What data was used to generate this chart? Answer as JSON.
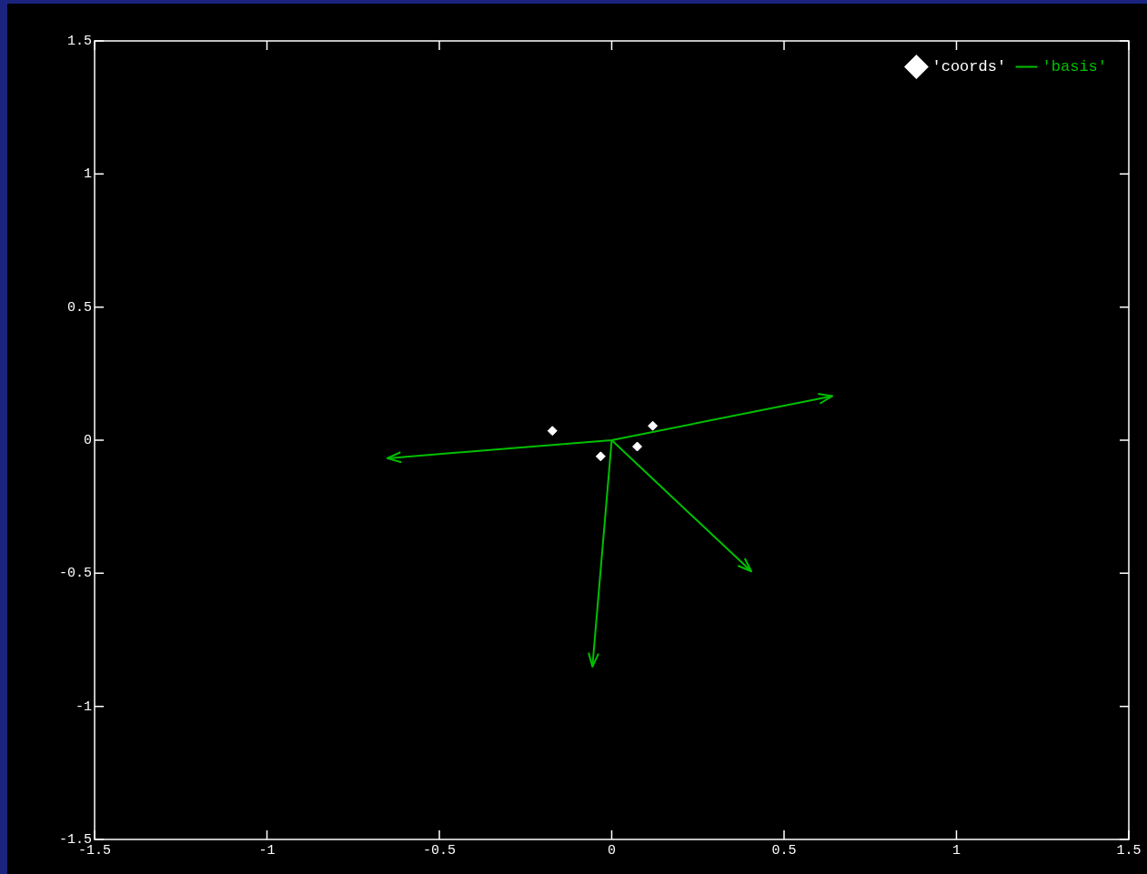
{
  "chart_data": {
    "type": "scatter",
    "xlim": [
      -1.5,
      1.5
    ],
    "ylim": [
      -1.5,
      1.5
    ],
    "xticks": [
      -1.5,
      -1,
      -0.5,
      0,
      0.5,
      1,
      1.5
    ],
    "yticks": [
      -1.5,
      -1,
      -0.5,
      0,
      0.5,
      1,
      1.5
    ],
    "grid": false,
    "legend": "top right",
    "series": [
      {
        "name": "'coords'",
        "type": "scatter",
        "marker": "diamond",
        "color": "#ffffff",
        "x": [
          -0.172,
          0.119,
          -0.032,
          0.074
        ],
        "values": [
          0.035,
          0.054,
          -0.061,
          -0.024
        ]
      },
      {
        "name": "'basis'",
        "type": "line",
        "marker": "none",
        "color": "#00c000",
        "x": [
          0,
          0.64,
          null,
          0,
          -0.651,
          null,
          0,
          -0.056,
          null,
          0,
          0.405
        ],
        "values": [
          0,
          0.166,
          null,
          0,
          -0.068,
          null,
          0,
          -0.851,
          null,
          0,
          -0.493
        ]
      }
    ]
  }
}
